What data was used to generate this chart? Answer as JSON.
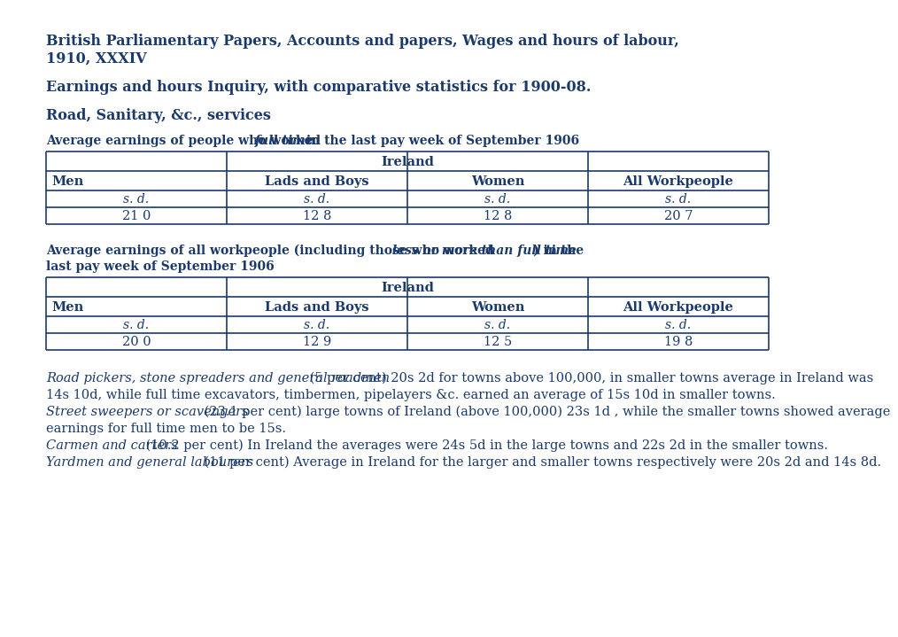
{
  "title1": "British Parliamentary Papers, Accounts and papers, Wages and hours of labour,",
  "title1b": "1910, XXXIV",
  "title2": "Earnings and hours Inquiry, with comparative statistics for 1900-08.",
  "title3": "Road, Sanitary, &c., services",
  "table1_caption_bold": "Average earnings of people who worked ",
  "table1_caption_italic_bold": "full time",
  "table1_caption_bold2": " in the last pay week of September 1906",
  "table1_header_span": "Ireland",
  "table1_cols": [
    "Men",
    "Lads and Boys",
    "Women",
    "All Workpeople"
  ],
  "table1_sd_row": [
    "s. d.",
    "s. d.",
    "s. d.",
    "s. d."
  ],
  "table1_data_row": [
    "21 0",
    "12 8",
    "12 8",
    "20 7"
  ],
  "table2_caption_bold": "Average earnings of all workpeople (including those who worked ",
  "table2_caption_italic_bold": "less or more than full time",
  "table2_caption_bold2": ") in the",
  "table2_caption_line2": "last pay week of September 1906",
  "table2_header_span": "Ireland",
  "table2_cols": [
    "Men",
    "Lads and Boys",
    "Women",
    "All Workpeople"
  ],
  "table2_sd_row": [
    "s. d.",
    "s. d.",
    "s. d.",
    "s. d."
  ],
  "table2_data_row": [
    "20 0",
    "12 9",
    "12 5",
    "19 8"
  ],
  "para1_italic": "Road pickers, stone spreaders and general roadmen",
  "para1_normal": " (5 per cent) 20s 2d for towns above 100,000, in smaller towns average in Ireland was 14s 10d, while full time excavators, timbermen, pipelayers &c. earned an average of 15s 10d in smaller towns.",
  "para2_italic": "Street sweepers or scavengers",
  "para2_normal": " (23.1 per cent) large towns of Ireland (above 100,000) 23s 1d , while the smaller towns showed average earnings for full time men to be 15s.",
  "para3_italic": "Carmen and carters",
  "para3_normal": " (10.2 per cent) In Ireland the averages were 24s 5d in the large towns and 22s 2d in the smaller towns.",
  "para4_italic": "Yardmen and general labourers",
  "para4_normal": " (11 per cent) Average in Ireland for the larger and smaller towns respectively were 20s 2d and 14s 8d.",
  "text_color": "#1a3a6b",
  "bg_color": "#ffffff"
}
